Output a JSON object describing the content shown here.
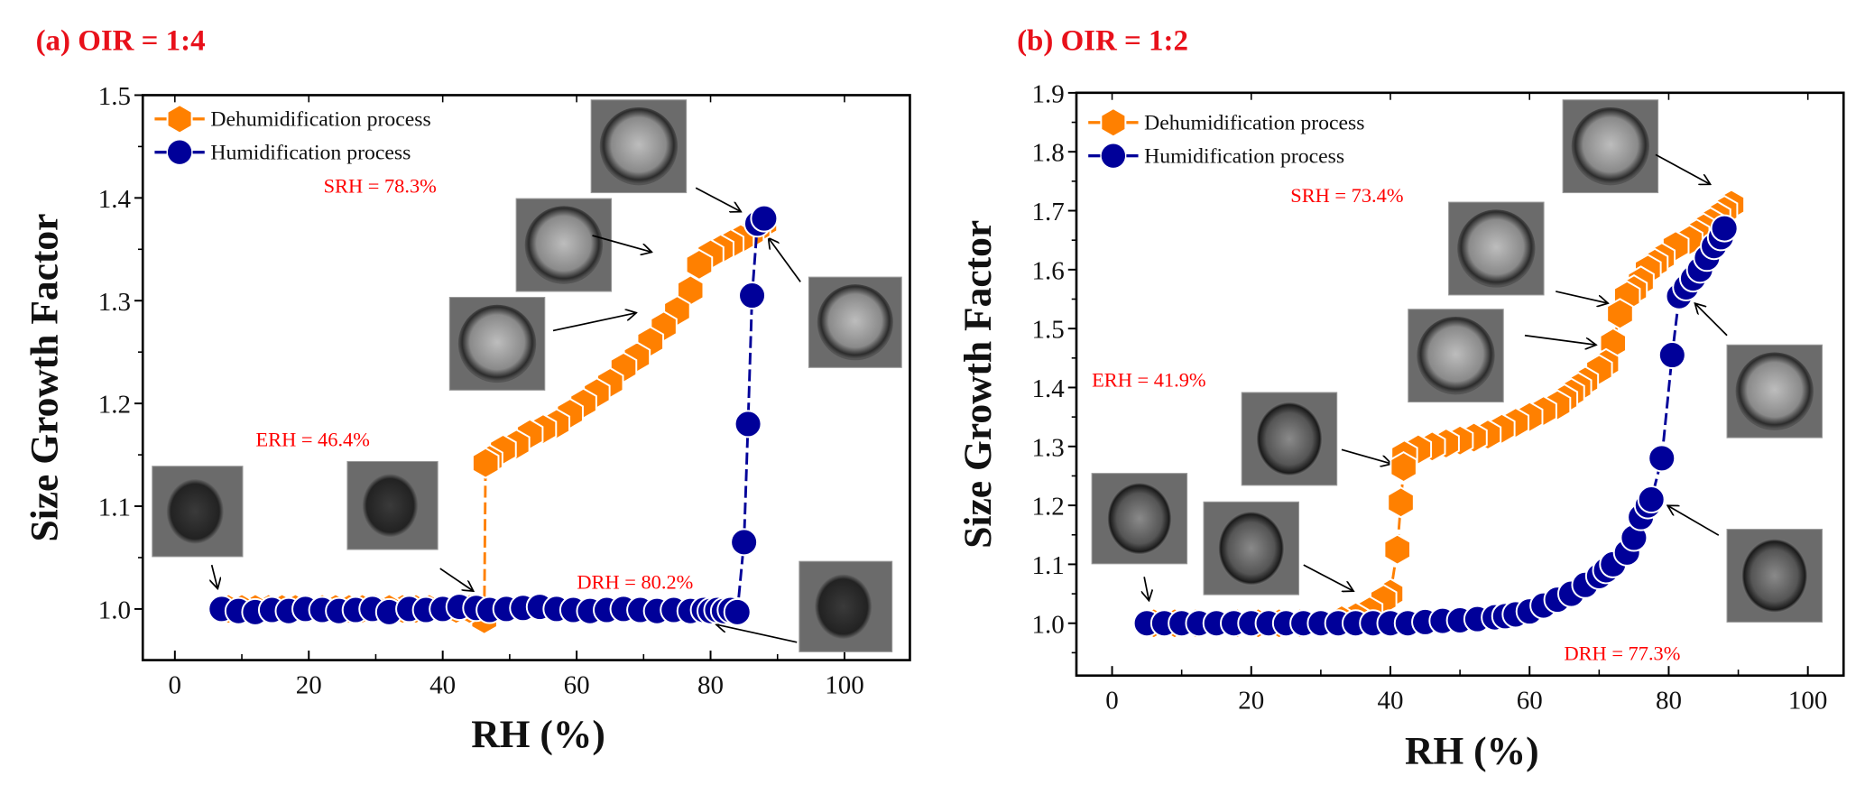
{
  "colors": {
    "dehumidification": "#FF8000",
    "humidification": "#000099",
    "annotation": "#FF0000",
    "title": "#E8101A"
  },
  "chart_data": [
    {
      "type": "scatter",
      "title": "(a) OIR = 1:4",
      "xlabel": "RH (%)",
      "ylabel": "Size Growth Factor",
      "xlim": [
        -5,
        110
      ],
      "ylim": [
        0.95,
        1.5
      ],
      "xticks": [
        "0",
        "20",
        "40",
        "60",
        "80",
        "100"
      ],
      "yticks": [
        "1.0",
        "1.1",
        "1.2",
        "1.3",
        "1.4",
        "1.5"
      ],
      "legend": "top-left",
      "grid": false,
      "series": [
        {
          "name": "Dehumidification process",
          "marker": "hexagon",
          "line": "dashed",
          "x": [
            88,
            87,
            86,
            84.5,
            83,
            81.5,
            80,
            78.3,
            77,
            75,
            73,
            71,
            69,
            67,
            65,
            63,
            61,
            59,
            57,
            55,
            53,
            51,
            49,
            47,
            46.4,
            46.2,
            44,
            42,
            40,
            38,
            36,
            34,
            32,
            30,
            28,
            26,
            24,
            22,
            20,
            18,
            16,
            14,
            12,
            10,
            8
          ],
          "y": [
            1.375,
            1.37,
            1.365,
            1.36,
            1.355,
            1.35,
            1.345,
            1.335,
            1.31,
            1.29,
            1.275,
            1.26,
            1.245,
            1.235,
            1.22,
            1.21,
            1.2,
            1.19,
            1.18,
            1.175,
            1.17,
            1.16,
            1.155,
            1.145,
            1.142,
            0.99,
            1.0,
            1.0,
            1.0,
            1.0,
            1.0,
            1.0,
            1.0,
            1.0,
            1.0,
            1.0,
            1.0,
            1.0,
            1.0,
            1.0,
            1.0,
            1.0,
            1.0,
            1.0,
            1.0
          ]
        },
        {
          "name": "Humidification process",
          "marker": "circle",
          "line": "dashed",
          "x": [
            7,
            9.5,
            12,
            14.5,
            17,
            19.5,
            22,
            24.5,
            27,
            29.5,
            32,
            35,
            37.5,
            40,
            42.5,
            45,
            47,
            49.5,
            52,
            54.5,
            57,
            59.5,
            62,
            64.5,
            67,
            69.5,
            72,
            74.5,
            77,
            79,
            80,
            81,
            82,
            83,
            84,
            85,
            85.6,
            86.2,
            87,
            88
          ],
          "y": [
            1.0,
            0.998,
            0.997,
            0.999,
            0.998,
            1.0,
            0.999,
            0.998,
            0.999,
            1.0,
            0.997,
            1.0,
            0.999,
            1.0,
            1.002,
            1.001,
            0.999,
            1.0,
            1.001,
            1.002,
            1.0,
            0.999,
            0.998,
            0.999,
            1.0,
            0.999,
            0.998,
            0.999,
            0.998,
            0.999,
            0.998,
            0.999,
            0.998,
            0.999,
            0.997,
            1.065,
            1.18,
            1.305,
            1.375,
            1.38
          ]
        }
      ],
      "annotations": [
        "SRH = 78.3%",
        "ERH = 46.4%",
        "DRH = 80.2%"
      ]
    },
    {
      "type": "scatter",
      "title": "(b) OIR = 1:2",
      "xlabel": "RH (%)",
      "ylabel": "Size Growth Factor",
      "xlim": [
        -5,
        105
      ],
      "ylim": [
        0.91,
        1.9
      ],
      "xticks": [
        "0",
        "20",
        "40",
        "60",
        "80",
        "100"
      ],
      "yticks": [
        "1.0",
        "1.1",
        "1.2",
        "1.3",
        "1.4",
        "1.5",
        "1.6",
        "1.7",
        "1.8",
        "1.9"
      ],
      "legend": "top-left",
      "grid": false,
      "series": [
        {
          "name": "Dehumidification process",
          "marker": "hexagon",
          "line": "dashed",
          "x": [
            89,
            88,
            87,
            86,
            85,
            84,
            83,
            81,
            79,
            78,
            77,
            76,
            75,
            74,
            73,
            72,
            71,
            70,
            68,
            67,
            66,
            65,
            64,
            62,
            60,
            58,
            56,
            54,
            52,
            50,
            48,
            46,
            44,
            42,
            41.9,
            41.5,
            41,
            40,
            39,
            37,
            35,
            33,
            30,
            27,
            24,
            21,
            18,
            15,
            12,
            9,
            6
          ],
          "y": [
            1.71,
            1.7,
            1.69,
            1.68,
            1.67,
            1.66,
            1.65,
            1.64,
            1.62,
            1.61,
            1.6,
            1.58,
            1.565,
            1.555,
            1.525,
            1.475,
            1.44,
            1.43,
            1.41,
            1.4,
            1.39,
            1.38,
            1.37,
            1.36,
            1.35,
            1.34,
            1.33,
            1.32,
            1.315,
            1.31,
            1.305,
            1.3,
            1.295,
            1.285,
            1.265,
            1.205,
            1.125,
            1.05,
            1.04,
            1.02,
            1.01,
            1.005,
            1.0,
            1.0,
            1.0,
            1.0,
            1.0,
            1.0,
            1.0,
            1.0,
            1.0
          ]
        },
        {
          "name": "Humidification process",
          "marker": "circle",
          "line": "dashed",
          "x": [
            5,
            7.5,
            10,
            12.5,
            15,
            17.5,
            20,
            22.5,
            25,
            27.5,
            30,
            32.5,
            35,
            37.5,
            40,
            42.5,
            45,
            47.5,
            50,
            52.5,
            55,
            56.5,
            58,
            60,
            62,
            64,
            66,
            68,
            70,
            71,
            72,
            74,
            75,
            76,
            77,
            77.5,
            79,
            80.5,
            81.5,
            82.5,
            83.5,
            84.5,
            85.5,
            86.5,
            87.5,
            88
          ],
          "y": [
            1.0,
            1.0,
            1.0,
            1.0,
            1.0,
            1.0,
            1.0,
            1.0,
            1.0,
            1.0,
            1.0,
            1.0,
            1.0,
            1.0,
            1.0,
            1.0,
            1.002,
            1.004,
            1.005,
            1.007,
            1.01,
            1.012,
            1.015,
            1.02,
            1.03,
            1.04,
            1.05,
            1.065,
            1.08,
            1.09,
            1.1,
            1.12,
            1.145,
            1.18,
            1.2,
            1.21,
            1.28,
            1.455,
            1.555,
            1.57,
            1.585,
            1.6,
            1.62,
            1.64,
            1.655,
            1.67
          ]
        }
      ],
      "annotations": [
        "SRH = 73.4%",
        "ERH = 41.9%",
        "DRH = 77.3%"
      ]
    }
  ]
}
